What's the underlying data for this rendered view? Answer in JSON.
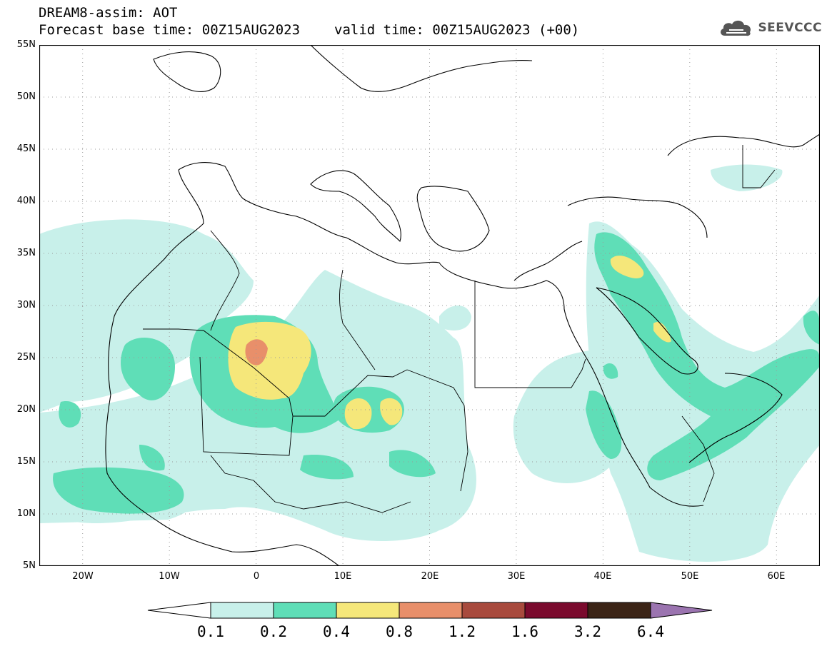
{
  "header": {
    "title": "DREAM8-assim: AOT",
    "base_time_label": "Forecast base time: 00Z15AUG2023",
    "valid_time_label": "valid time: 00Z15AUG2023 (+00)",
    "logo_text": "SEEVCCC",
    "logo_icon": "cloud-icon"
  },
  "map": {
    "variable": "AOT",
    "lon_range": [
      -25,
      65
    ],
    "lat_range": [
      5,
      55
    ],
    "lat_ticks": [
      "55N",
      "50N",
      "45N",
      "40N",
      "35N",
      "30N",
      "25N",
      "20N",
      "15N",
      "10N",
      "5N"
    ],
    "lon_ticks": [
      "20W",
      "10W",
      "0",
      "10E",
      "20E",
      "30E",
      "40E",
      "50E",
      "60E"
    ],
    "gridlines": "dotted"
  },
  "legend": {
    "labels": [
      "0.1",
      "0.2",
      "0.4",
      "0.8",
      "1.2",
      "1.6",
      "3.2",
      "6.4"
    ],
    "colors": [
      "#ffffff",
      "#c8f0ea",
      "#5fdeb7",
      "#f5e77a",
      "#e88f6a",
      "#a84a3d",
      "#7a0a2d",
      "#3b2416",
      "#9b74b0"
    ]
  }
}
